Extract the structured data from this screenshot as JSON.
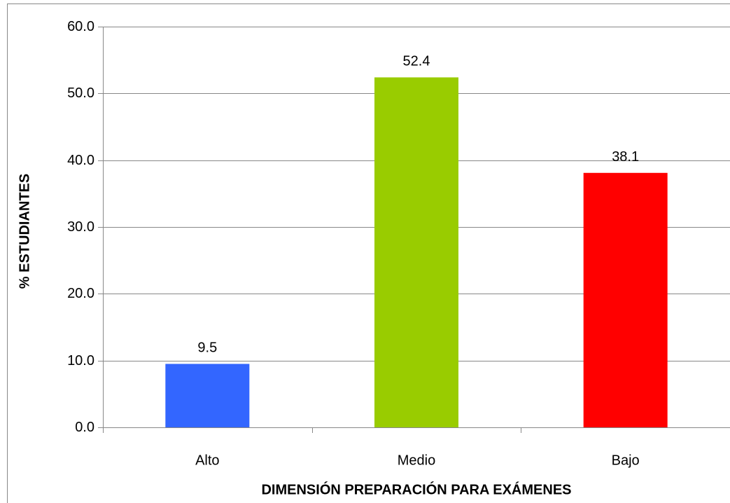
{
  "chart_data": {
    "type": "bar",
    "x_label": "DIMENSIÓN PREPARACIÓN PARA EXÁMENES",
    "y_label": "% ESTUDIANTES",
    "categories": [
      "Alto",
      "Medio",
      "Bajo"
    ],
    "values": [
      9.5,
      52.4,
      38.1
    ],
    "colors": [
      "#3366ff",
      "#99cc00",
      "#ff0000"
    ],
    "ylim": [
      0,
      60
    ],
    "yticks": [
      {
        "value": 0,
        "label": "0.0"
      },
      {
        "value": 10,
        "label": "10.0"
      },
      {
        "value": 20,
        "label": "20.0"
      },
      {
        "value": 30,
        "label": "30.0"
      },
      {
        "value": 40,
        "label": "40.0"
      },
      {
        "value": 50,
        "label": "50.0"
      },
      {
        "value": 60,
        "label": "60.0"
      }
    ],
    "grid": true
  }
}
